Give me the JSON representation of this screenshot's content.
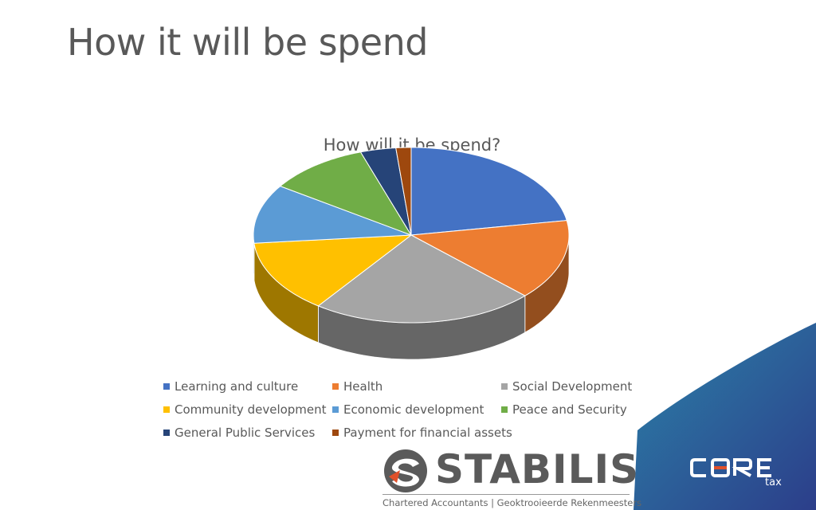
{
  "slide": {
    "title": "How it will be spend"
  },
  "chart_data": {
    "type": "pie",
    "title": "How will it be spend?",
    "categories": [
      "Learning and culture",
      "Health",
      "Social Development",
      "Community development",
      "Economic development",
      "Peace and Security",
      "General Public Services",
      "Payment for financial assets"
    ],
    "values": [
      21.5,
      14.3,
      22.0,
      13.0,
      10.5,
      10.0,
      3.5,
      1.5
    ],
    "colors": [
      "#4472C4",
      "#ED7D31",
      "#A5A5A5",
      "#FFC000",
      "#5B9BD5",
      "#70AD47",
      "#264478",
      "#9E480E"
    ],
    "legend_position": "bottom"
  },
  "branding": {
    "stabilis_name": "STABILIS",
    "stabilis_tagline": "Chartered Accountants | Geoktrooieerde Rekenmeesters",
    "core_sub": "tax",
    "corner_color": "#2f6f9f"
  }
}
